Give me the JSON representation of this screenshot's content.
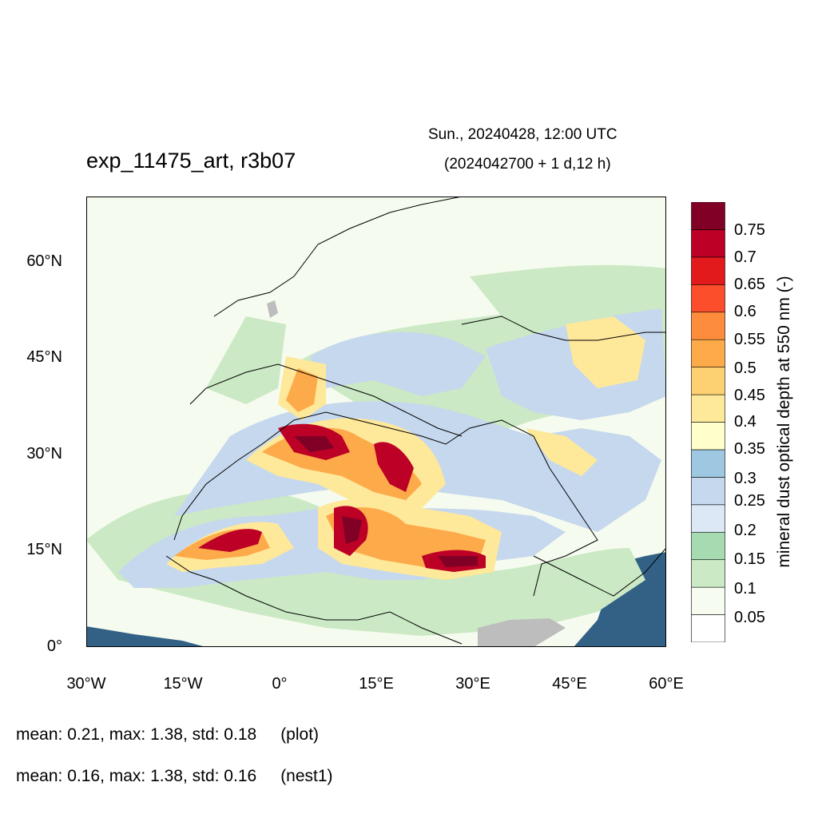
{
  "header": {
    "title": "exp_11475_art, r3b07",
    "valid_time": "Sun., 20240428, 12:00 UTC",
    "forecast_time": "(2024042700 + 1 d,12 h)"
  },
  "map": {
    "lat_ticks": [
      "60°N",
      "45°N",
      "30°N",
      "15°N",
      "0°"
    ],
    "lon_ticks": [
      "30°W",
      "15°W",
      "0°",
      "15°E",
      "30°E",
      "45°E",
      "60°E"
    ],
    "lat_range": [
      0,
      70
    ],
    "lon_range": [
      -30,
      60
    ],
    "variable": "mineral dust optical depth at 550 nm (-)",
    "land_color": "#f5fbee",
    "ocean_fill_color": "#336186",
    "missing_color": "#bdbdbd"
  },
  "colorbar": {
    "label": "mineral dust optical depth at 550 nm (-)",
    "levels": [
      "0.05",
      "0.1",
      "0.15",
      "0.2",
      "0.25",
      "0.3",
      "0.35",
      "0.4",
      "0.45",
      "0.5",
      "0.55",
      "0.6",
      "0.65",
      "0.7",
      "0.75"
    ],
    "colors": [
      "#ffffff",
      "#f7fcf0",
      "#cbe9c4",
      "#a6dbb1",
      "#dce8f6",
      "#c6d8ee",
      "#9ec8e1",
      "#ffffcb",
      "#fee89a",
      "#fdd171",
      "#fdaa4a",
      "#fd8d3c",
      "#fc4e2a",
      "#e31a1c",
      "#bd0026",
      "#800026"
    ]
  },
  "stats": {
    "plot": {
      "text": "mean: 0.21, max: 1.38, std: 0.18",
      "tag": "(plot)"
    },
    "nest1": {
      "text": "mean: 0.16, max: 1.38, std: 0.16",
      "tag": "(nest1)"
    }
  }
}
